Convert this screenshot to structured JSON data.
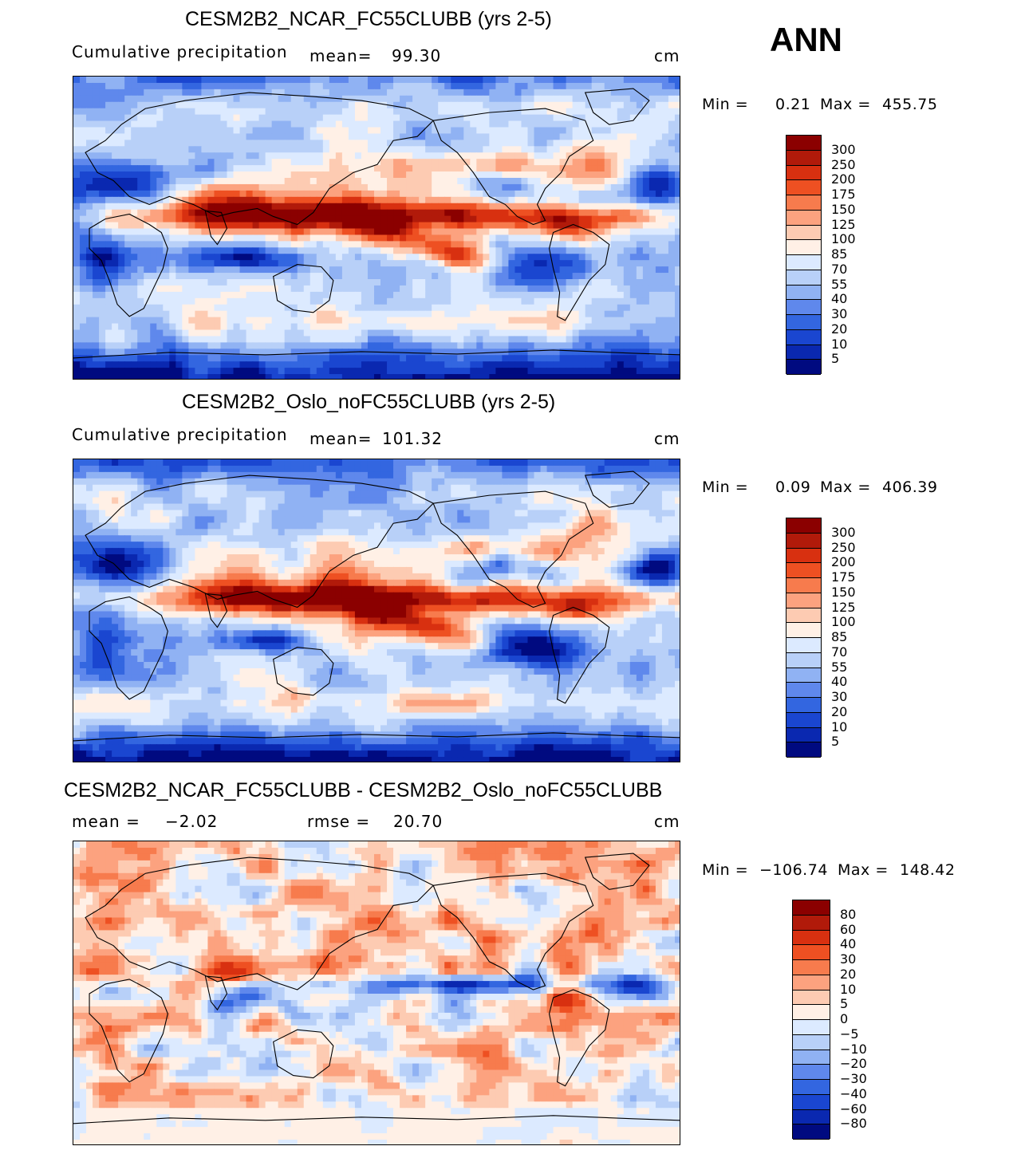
{
  "season": "ANN",
  "panels": [
    {
      "title": "CESM2B2_NCAR_FC55CLUBB (yrs 2-5)",
      "left_label": "Cumulative  precipitation",
      "stat_label": "mean=",
      "stat_value": "99.30",
      "stat2_label": "",
      "stat2_value": "",
      "units": "cm",
      "min_label": "Min  =",
      "min_value": "0.21",
      "max_label": "Max  =",
      "max_value": "455.75",
      "colorbar": {
        "levels": [
          "300",
          "250",
          "200",
          "175",
          "150",
          "125",
          "100",
          "85",
          "70",
          "55",
          "40",
          "30",
          "20",
          "10",
          "5"
        ],
        "colors": [
          "#8b0000",
          "#b11a0a",
          "#d83010",
          "#ee5022",
          "#f77b4d",
          "#fca27f",
          "#fdcbb2",
          "#fff0e6",
          "#dceaff",
          "#b8d0f8",
          "#90b2f3",
          "#5f88ec",
          "#3366e0",
          "#1a46d0",
          "#0a28b0",
          "#000a80"
        ]
      },
      "map_mode": "precip"
    },
    {
      "title": "CESM2B2_Oslo_noFC55CLUBB (yrs 2-5)",
      "left_label": "Cumulative  precipitation",
      "stat_label": "mean=",
      "stat_value": "101.32",
      "stat2_label": "",
      "stat2_value": "",
      "units": "cm",
      "min_label": "Min  =",
      "min_value": "0.09",
      "max_label": "Max  =",
      "max_value": "406.39",
      "colorbar": {
        "levels": [
          "300",
          "250",
          "200",
          "175",
          "150",
          "125",
          "100",
          "85",
          "70",
          "55",
          "40",
          "30",
          "20",
          "10",
          "5"
        ],
        "colors": [
          "#8b0000",
          "#b11a0a",
          "#d83010",
          "#ee5022",
          "#f77b4d",
          "#fca27f",
          "#fdcbb2",
          "#fff0e6",
          "#dceaff",
          "#b8d0f8",
          "#90b2f3",
          "#5f88ec",
          "#3366e0",
          "#1a46d0",
          "#0a28b0",
          "#000a80"
        ]
      },
      "map_mode": "precip2"
    },
    {
      "title": "CESM2B2_NCAR_FC55CLUBB - CESM2B2_Oslo_noFC55CLUBB",
      "left_label": "",
      "stat_label": "mean  =",
      "stat_value": "−2.02",
      "stat2_label": "rmse  =",
      "stat2_value": "20.70",
      "units": "cm",
      "min_label": "Min  =",
      "min_value": "−106.74",
      "max_label": "Max  =",
      "max_value": "148.42",
      "colorbar": {
        "levels": [
          "80",
          "60",
          "40",
          "30",
          "20",
          "10",
          "5",
          "0",
          "−5",
          "−10",
          "−20",
          "−30",
          "−40",
          "−60",
          "−80"
        ],
        "colors": [
          "#8b0000",
          "#b11a0a",
          "#d83010",
          "#ee5022",
          "#f77b4d",
          "#fca27f",
          "#fdcbb2",
          "#fff0e6",
          "#dceaff",
          "#b8d0f8",
          "#90b2f3",
          "#5f88ec",
          "#3366e0",
          "#1a46d0",
          "#0a28b0",
          "#000a80"
        ]
      },
      "map_mode": "diff"
    }
  ]
}
